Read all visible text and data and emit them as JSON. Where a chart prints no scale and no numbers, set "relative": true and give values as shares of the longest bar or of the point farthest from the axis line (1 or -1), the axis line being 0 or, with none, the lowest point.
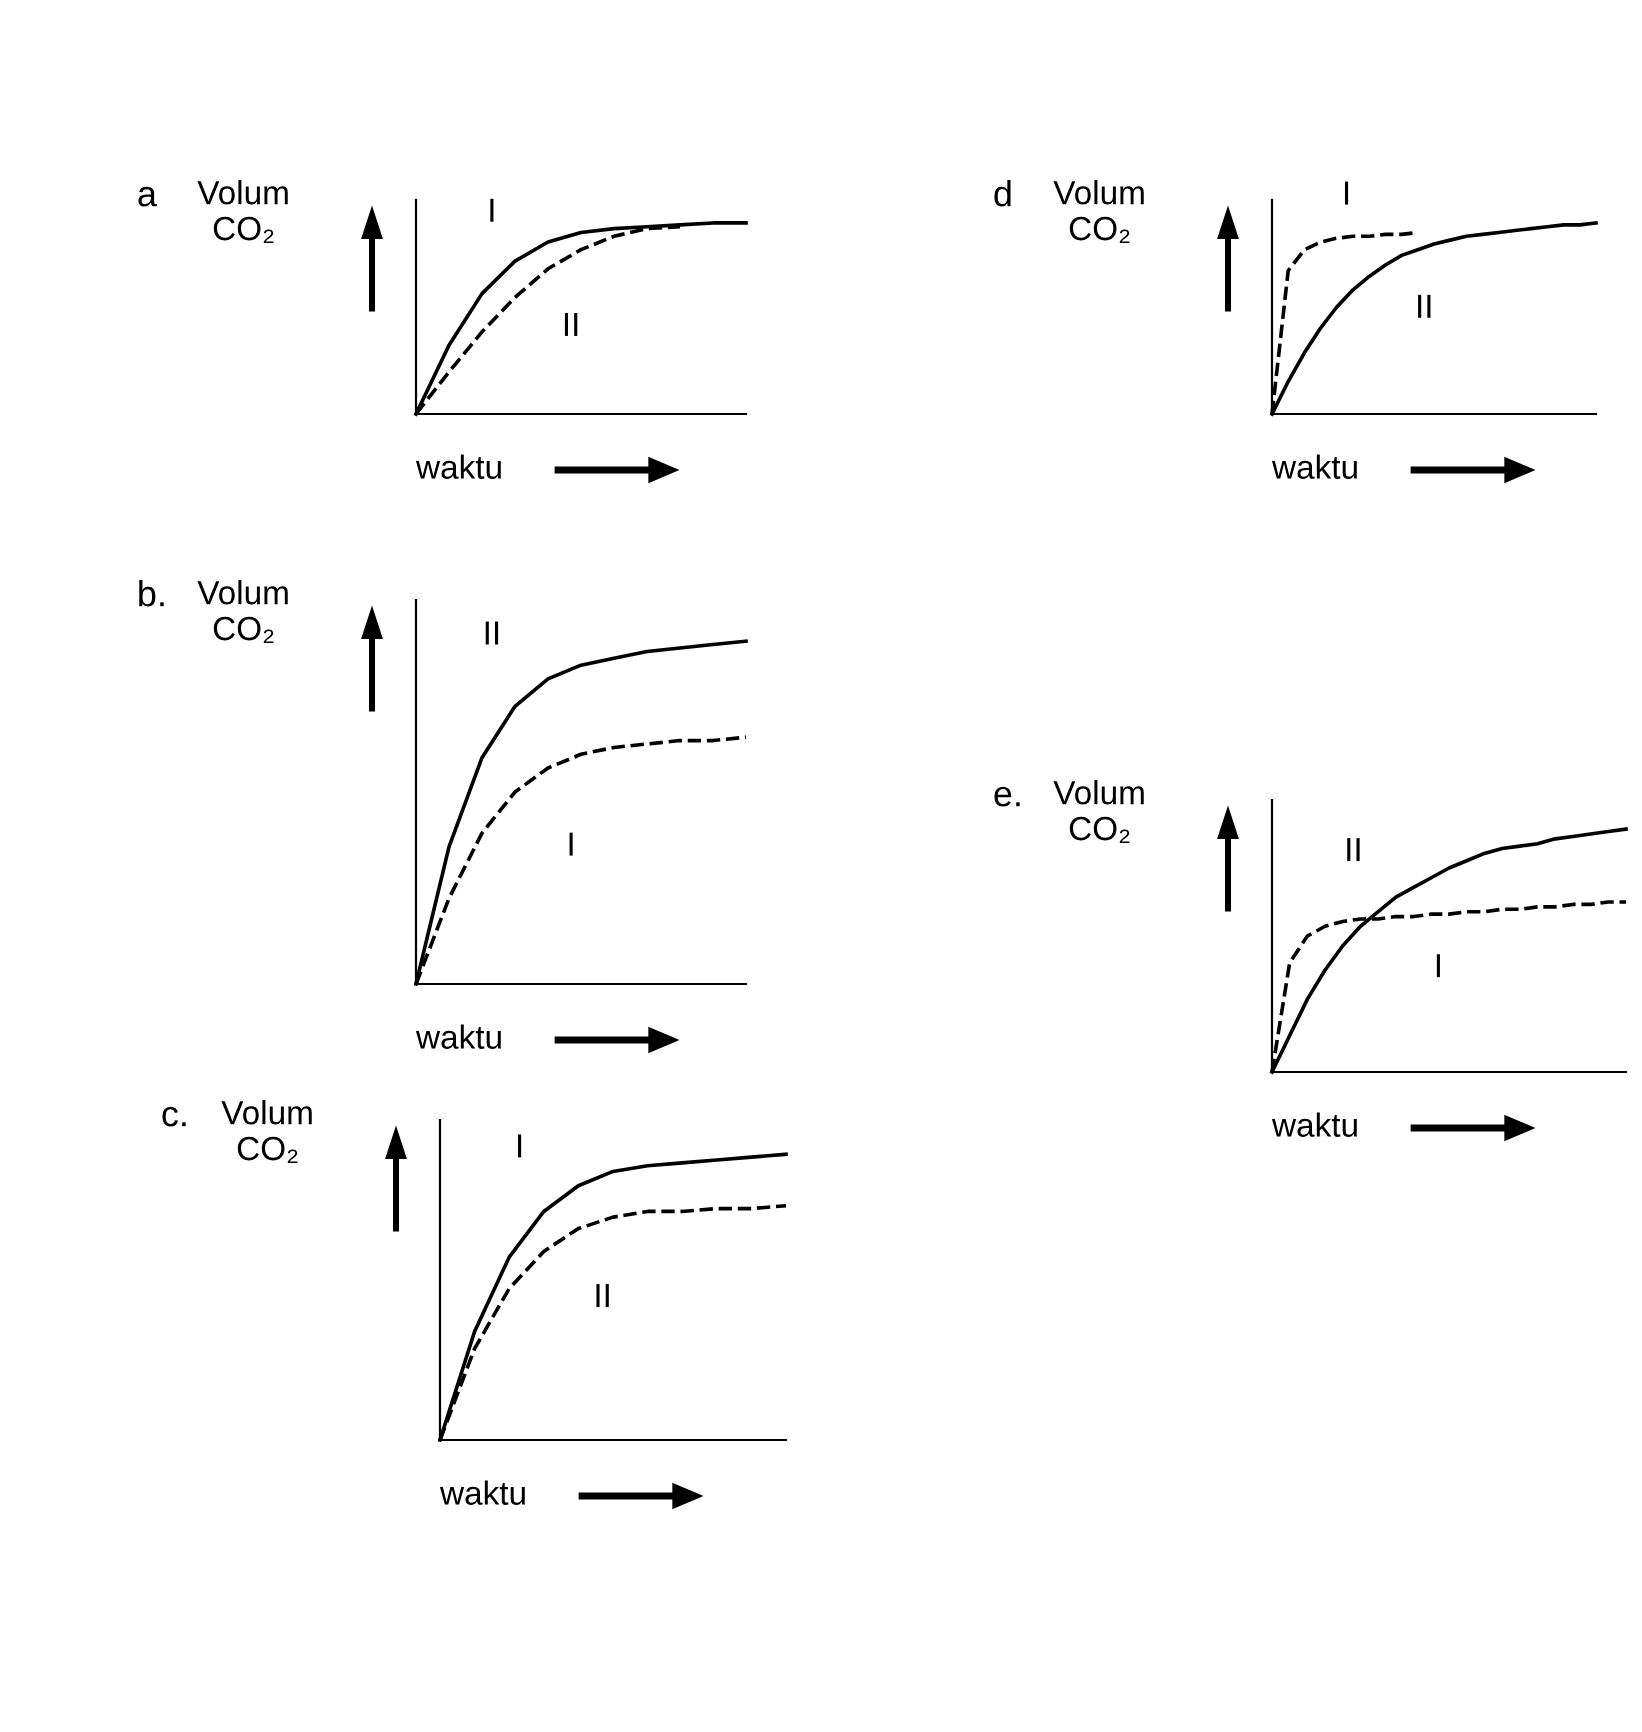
{
  "chart_data": [
    {
      "type": "line",
      "annotations": [
        "a"
      ],
      "xlabel": "waktu",
      "ylabel": "Volum CO₂",
      "relative": true,
      "tick_labels": false,
      "marker": "none",
      "categories": [
        null,
        null,
        null,
        null,
        null,
        null,
        null,
        null,
        null,
        null,
        null
      ],
      "series": [
        {
          "name": "I",
          "color": "#000000",
          "line_style": "solid",
          "values": [
            0,
            0.36,
            0.63,
            0.8,
            0.9,
            0.95,
            0.97,
            0.98,
            0.99,
            1.0,
            1.0
          ]
        },
        {
          "name": "II",
          "color": "#000000",
          "line_style": "dashed",
          "values": [
            0,
            0.22,
            0.43,
            0.61,
            0.76,
            0.86,
            0.93,
            0.97,
            0.98,
            null,
            null
          ]
        }
      ]
    },
    {
      "type": "line",
      "annotations": [
        "d"
      ],
      "xlabel": "waktu",
      "ylabel": "Volum CO₂",
      "relative": true,
      "tick_labels": false,
      "marker": "none",
      "categories": [
        null,
        null,
        null,
        null,
        null,
        null,
        null,
        null,
        null,
        null,
        null,
        null,
        null,
        null,
        null,
        null,
        null,
        null,
        null,
        null,
        null
      ],
      "series": [
        {
          "name": "I",
          "color": "#000000",
          "line_style": "dashed",
          "values": [
            0,
            0.75,
            0.86,
            0.9,
            0.92,
            0.93,
            0.93,
            0.94,
            0.94,
            0.95,
            null,
            null,
            null,
            null,
            null,
            null,
            null,
            null,
            null,
            null,
            null
          ]
        },
        {
          "name": "II",
          "color": "#000000",
          "line_style": "solid",
          "values": [
            0,
            0.17,
            0.32,
            0.45,
            0.56,
            0.65,
            0.72,
            0.78,
            0.83,
            0.86,
            0.89,
            0.91,
            0.93,
            0.94,
            0.95,
            0.96,
            0.97,
            0.98,
            0.99,
            0.99,
            1.0
          ]
        }
      ]
    },
    {
      "type": "line",
      "annotations": [
        "b."
      ],
      "xlabel": "waktu",
      "ylabel": "Volum CO₂",
      "relative": true,
      "tick_labels": false,
      "marker": "none",
      "categories": [
        null,
        null,
        null,
        null,
        null,
        null,
        null,
        null,
        null,
        null,
        null
      ],
      "series": [
        {
          "name": "II",
          "color": "#000000",
          "line_style": "solid",
          "values": [
            0,
            0.4,
            0.66,
            0.81,
            0.89,
            0.93,
            0.95,
            0.97,
            0.98,
            0.99,
            1.0
          ]
        },
        {
          "name": "I",
          "color": "#000000",
          "line_style": "dashed",
          "values": [
            0,
            0.25,
            0.44,
            0.56,
            0.63,
            0.67,
            0.69,
            0.7,
            0.71,
            0.71,
            0.72
          ]
        }
      ]
    },
    {
      "type": "line",
      "annotations": [
        "e."
      ],
      "xlabel": "waktu",
      "ylabel": "Volum CO₂",
      "relative": true,
      "tick_labels": false,
      "marker": "none",
      "categories": [
        null,
        null,
        null,
        null,
        null,
        null,
        null,
        null,
        null,
        null,
        null,
        null,
        null,
        null,
        null,
        null,
        null,
        null,
        null,
        null,
        null
      ],
      "series": [
        {
          "name": "II",
          "color": "#000000",
          "line_style": "solid",
          "values": [
            0,
            0.15,
            0.3,
            0.42,
            0.52,
            0.6,
            0.66,
            0.72,
            0.76,
            0.8,
            0.84,
            0.87,
            0.9,
            0.92,
            0.93,
            0.94,
            0.96,
            0.97,
            0.98,
            0.99,
            1.0
          ]
        },
        {
          "name": "I",
          "color": "#000000",
          "line_style": "dashed",
          "values": [
            0,
            0.45,
            0.56,
            0.6,
            0.62,
            0.63,
            0.63,
            0.64,
            0.64,
            0.65,
            0.65,
            0.66,
            0.66,
            0.67,
            0.67,
            0.68,
            0.68,
            0.69,
            0.69,
            0.7,
            0.7
          ]
        }
      ]
    },
    {
      "type": "line",
      "annotations": [
        "c."
      ],
      "xlabel": "waktu",
      "ylabel": "Volum CO₂",
      "relative": true,
      "tick_labels": false,
      "marker": "none",
      "categories": [
        null,
        null,
        null,
        null,
        null,
        null,
        null,
        null,
        null,
        null,
        null
      ],
      "series": [
        {
          "name": "I",
          "color": "#000000",
          "line_style": "solid",
          "values": [
            0,
            0.38,
            0.64,
            0.8,
            0.89,
            0.94,
            0.96,
            0.97,
            0.98,
            0.99,
            1.0
          ]
        },
        {
          "name": "II",
          "color": "#000000",
          "line_style": "dashed",
          "values": [
            0,
            0.32,
            0.53,
            0.66,
            0.74,
            0.78,
            0.8,
            0.8,
            0.81,
            0.81,
            0.82
          ]
        }
      ]
    }
  ]
}
